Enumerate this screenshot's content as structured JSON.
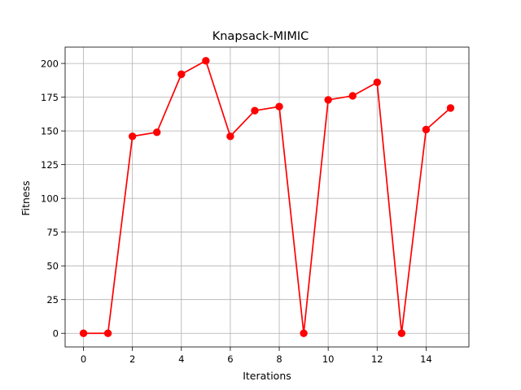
{
  "chart_data": {
    "type": "line",
    "title": "Knapsack-MIMIC",
    "xlabel": "Iterations",
    "ylabel": "Fitness",
    "x": [
      0,
      1,
      2,
      3,
      4,
      5,
      6,
      7,
      8,
      9,
      10,
      11,
      12,
      13,
      14,
      15
    ],
    "series": [
      {
        "values": [
          0,
          0,
          146,
          149,
          192,
          202,
          146,
          165,
          168,
          0,
          173,
          176,
          186,
          0,
          151,
          167
        ],
        "color": "#ff0000",
        "marker": "circle"
      }
    ],
    "xlim": [
      -0.75,
      15.75
    ],
    "ylim": [
      -10.1,
      212.1
    ],
    "xticks": [
      0,
      2,
      4,
      6,
      8,
      10,
      12,
      14
    ],
    "yticks": [
      0,
      25,
      50,
      75,
      100,
      125,
      150,
      175,
      200
    ],
    "grid": true
  }
}
